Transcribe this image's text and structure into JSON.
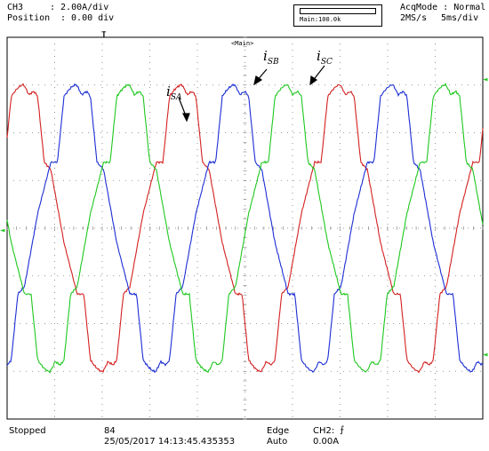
{
  "header": {
    "channel": "CH3",
    "scale": ": 2.00A/div",
    "position_label": "Position",
    "position_value": ": 0.00 div",
    "zoom_label": "Main:100.0k",
    "acq_mode": "AcqMode : Normal",
    "sample_rate": "2MS/s",
    "timebase": "5ms/div",
    "main_tag": "<Main>"
  },
  "footer": {
    "status": "Stopped",
    "count": "84",
    "timestamp": "25/05/2017 14:13:45.435353",
    "trigger_type": "Edge",
    "trigger_mode": "Auto",
    "trigger_source": "CH2:",
    "trigger_level": "0.00A"
  },
  "labels": {
    "sa_base": "i",
    "sa_sub": "SA",
    "sb_base": "i",
    "sb_sub": "SB",
    "sc_base": "i",
    "sc_sub": "SC"
  },
  "colors": {
    "sa": "#d42020",
    "sb": "#1c2ed4",
    "sc": "#1ec81e",
    "grid": "#7a7a7a",
    "frame": "#000000"
  },
  "chart_data": {
    "type": "line",
    "grid": true,
    "x_divisions": 10,
    "y_divisions": 8,
    "series": [
      {
        "name": "iSA",
        "phase_deg": 0
      },
      {
        "name": "iSB",
        "phase_deg": -120
      },
      {
        "name": "iSC",
        "phase_deg": 120
      }
    ]
  }
}
